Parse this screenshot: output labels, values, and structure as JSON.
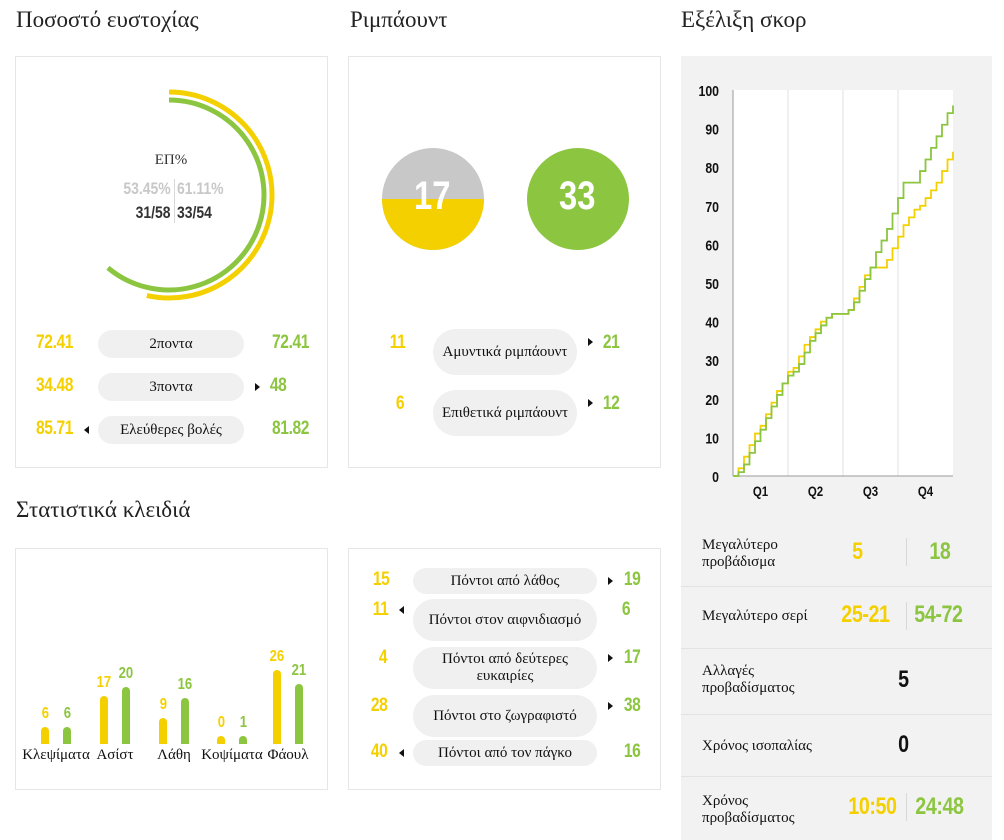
{
  "colors": {
    "team_a": "#f5d000",
    "team_b": "#8cc540",
    "gray": "#c8c8c8"
  },
  "shooting": {
    "title": "Ποσοστό ευστοχίας",
    "center_label": "ΕΠ%",
    "team_a_pct": "53.45%",
    "team_b_pct": "61.11%",
    "team_a_made": "31/58",
    "team_b_made": "33/54",
    "team_a_ratio": 0.5345,
    "team_b_ratio": 0.6111,
    "rows": [
      {
        "label": "2ποντα",
        "a": "72.41",
        "b": "72.41",
        "arrow": "none"
      },
      {
        "label": "3ποντα",
        "a": "34.48",
        "b": "48",
        "arrow": "right"
      },
      {
        "label": "Ελεύθερες βολές",
        "a": "85.71",
        "b": "81.82",
        "arrow": "left"
      }
    ]
  },
  "rebounds": {
    "title": "Ριμπάουντ",
    "team_a_total": "17",
    "team_b_total": "33",
    "team_a_fill_ratio": 0.5,
    "team_b_fill_ratio": 1.0,
    "rows": [
      {
        "label": "Αμυντικά ριμπάουντ",
        "a": "11",
        "b": "21",
        "arrow": "right"
      },
      {
        "label": "Επιθετικά ριμπάουντ",
        "a": "6",
        "b": "12",
        "arrow": "right"
      }
    ]
  },
  "key_stats": {
    "title": "Στατιστικά κλειδιά",
    "chart_data": {
      "type": "bar",
      "categories": [
        "Κλεψίματα",
        "Ασίστ",
        "Λάθη",
        "Κοψίματα",
        "Φάουλ"
      ],
      "series": [
        {
          "values": [
            6,
            17,
            9,
            0,
            26
          ]
        },
        {
          "values": [
            6,
            20,
            16,
            1,
            21
          ]
        }
      ]
    }
  },
  "points": {
    "rows": [
      {
        "label": "Πόντοι από λάθος",
        "a": "15",
        "b": "19",
        "arrow": "right"
      },
      {
        "label": "Πόντοι στον αιφνιδιασμό",
        "a": "11",
        "b": "6",
        "arrow": "left"
      },
      {
        "label": "Πόντοι από δεύτερες ευκαιρίες",
        "a": "4",
        "b": "17",
        "arrow": "right"
      },
      {
        "label": "Πόντοι στο ζωγραφιστό",
        "a": "28",
        "b": "38",
        "arrow": "right"
      },
      {
        "label": "Πόντοι από τον πάγκο",
        "a": "40",
        "b": "16",
        "arrow": "left"
      }
    ]
  },
  "score_progress": {
    "title": "Εξέλιξη σκορ",
    "chart_data": {
      "type": "line",
      "x_categories": [
        "Q1",
        "Q2",
        "Q3",
        "Q4"
      ],
      "ylim": [
        0,
        100
      ],
      "y_ticks": [
        "0",
        "10",
        "20",
        "30",
        "40",
        "50",
        "60",
        "70",
        "80",
        "90",
        "100"
      ],
      "grid": true,
      "series": [
        {
          "x": [
            0,
            0.1,
            0.2,
            0.3,
            0.4,
            0.5,
            0.6,
            0.7,
            0.8,
            0.9,
            1.0,
            1.1,
            1.2,
            1.3,
            1.4,
            1.5,
            1.6,
            1.7,
            1.8,
            1.9,
            2.0,
            2.1,
            2.2,
            2.3,
            2.4,
            2.5,
            2.6,
            2.7,
            2.8,
            2.9,
            3.0,
            3.1,
            3.2,
            3.3,
            3.4,
            3.5,
            3.6,
            3.7,
            3.8,
            3.9,
            4.0
          ],
          "values": [
            0,
            2,
            5,
            8,
            11,
            13,
            16,
            19,
            22,
            24,
            27,
            28,
            31,
            34,
            36,
            38,
            40,
            41,
            42,
            42,
            42,
            43,
            46,
            49,
            52,
            54,
            54,
            54,
            56,
            59,
            62,
            65,
            67,
            69,
            70,
            72,
            74,
            76,
            79,
            82,
            84
          ]
        },
        {
          "x": [
            0,
            0.1,
            0.2,
            0.3,
            0.4,
            0.5,
            0.6,
            0.7,
            0.8,
            0.9,
            1.0,
            1.1,
            1.2,
            1.3,
            1.4,
            1.5,
            1.6,
            1.7,
            1.8,
            1.9,
            2.0,
            2.1,
            2.2,
            2.3,
            2.4,
            2.5,
            2.6,
            2.7,
            2.8,
            2.9,
            3.0,
            3.1,
            3.2,
            3.3,
            3.4,
            3.5,
            3.6,
            3.7,
            3.8,
            3.9,
            4.0
          ],
          "values": [
            0,
            1,
            3,
            6,
            9,
            12,
            15,
            18,
            21,
            24,
            26,
            27,
            29,
            32,
            35,
            37,
            39,
            41,
            42,
            42,
            42,
            43,
            45,
            48,
            51,
            54,
            58,
            61,
            64,
            68,
            72,
            76,
            76,
            76,
            79,
            82,
            85,
            88,
            91,
            94,
            96
          ]
        }
      ]
    }
  },
  "summary": {
    "rows": [
      {
        "label": "Μεγαλύτερο προβάδισμα",
        "a": "5",
        "b": "18"
      },
      {
        "label": "Μεγαλύτερο σερί",
        "a": "25-21",
        "b": "54-72"
      },
      {
        "label": "Αλλαγές προβαδίσματος",
        "single": "5"
      },
      {
        "label": "Χρόνος ισοπαλίας",
        "single": "0"
      },
      {
        "label": "Χρόνος προβαδίσματος",
        "a": "10:50",
        "b": "24:48"
      }
    ]
  }
}
